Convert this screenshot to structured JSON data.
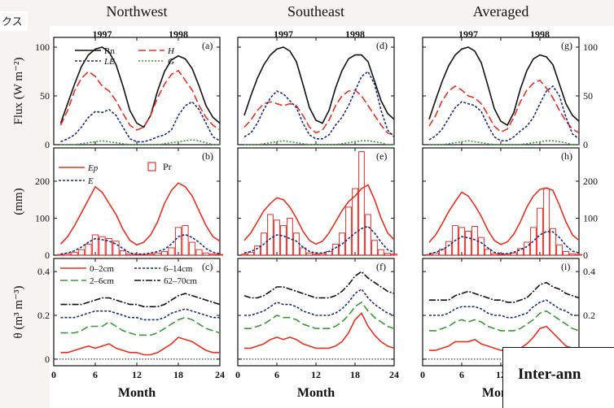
{
  "jp_label": "クス",
  "banner_text": "Inter-ann",
  "colors": {
    "rn": "#111111",
    "h": "#e83020",
    "le": "#1a2a80",
    "g": "#3a9a3a",
    "ep": "#e83020",
    "e": "#1a2a80",
    "pr": "#e8302a",
    "d1": "#e83020",
    "d2": "#3a9a3a",
    "d3": "#1a2a80",
    "d4": "#111111"
  },
  "chart_data": {
    "type": "line",
    "columns": [
      "Northwest",
      "Southeast",
      "Averaged"
    ],
    "years": [
      "1997",
      "1998"
    ],
    "x": [
      1,
      2,
      3,
      4,
      5,
      6,
      7,
      8,
      9,
      10,
      11,
      12,
      13,
      14,
      15,
      16,
      17,
      18,
      19,
      20,
      21,
      22,
      23,
      24
    ],
    "xlim": [
      0,
      24
    ],
    "xticks": [
      "0",
      "6",
      "12",
      "18",
      "24"
    ],
    "xlabel": "Month",
    "rows": [
      {
        "ylabel": "Flux (W m⁻²)",
        "ylim": [
          0,
          110
        ],
        "yticks": [
          "0",
          "50",
          "100"
        ],
        "legend": [
          "Rn",
          "H",
          "LE",
          "G"
        ],
        "panels": [
          {
            "label": "(a)",
            "Rn": [
              22,
              42,
              62,
              80,
              92,
              98,
              100,
              95,
              82,
              60,
              35,
              22,
              18,
              30,
              55,
              75,
              87,
              91,
              88,
              78,
              60,
              40,
              28,
              22
            ],
            "H": [
              20,
              35,
              55,
              68,
              75,
              70,
              60,
              55,
              45,
              32,
              20,
              15,
              18,
              30,
              48,
              62,
              72,
              76,
              66,
              56,
              40,
              28,
              20,
              15
            ],
            "LE": [
              3,
              6,
              10,
              18,
              28,
              34,
              33,
              36,
              30,
              18,
              6,
              3,
              3,
              5,
              8,
              10,
              15,
              30,
              40,
              44,
              36,
              22,
              8,
              4
            ],
            "G": [
              0,
              0,
              0,
              1,
              2,
              3,
              4,
              3,
              2,
              1,
              0,
              0,
              0,
              0,
              0,
              1,
              2,
              3,
              4,
              5,
              4,
              2,
              0,
              0
            ]
          },
          {
            "label": "(d)",
            "Rn": [
              30,
              50,
              68,
              82,
              92,
              98,
              100,
              96,
              85,
              62,
              38,
              25,
              22,
              35,
              58,
              76,
              88,
              92,
              92,
              85,
              65,
              45,
              32,
              26
            ],
            "H": [
              18,
              25,
              35,
              42,
              44,
              42,
              40,
              42,
              40,
              30,
              18,
              12,
              15,
              25,
              40,
              50,
              55,
              56,
              50,
              40,
              30,
              20,
              12,
              10
            ],
            "LE": [
              8,
              12,
              22,
              36,
              48,
              55,
              52,
              45,
              38,
              22,
              10,
              6,
              6,
              10,
              20,
              28,
              40,
              55,
              70,
              75,
              62,
              35,
              15,
              8
            ],
            "G": [
              0,
              0,
              0,
              1,
              2,
              3,
              4,
              3,
              2,
              1,
              0,
              0,
              0,
              0,
              0,
              1,
              2,
              3,
              4,
              4,
              3,
              2,
              0,
              0
            ]
          },
          {
            "label": "(g)",
            "Rn": [
              26,
              46,
              65,
              81,
              92,
              98,
              100,
              96,
              84,
              61,
              37,
              24,
              20,
              33,
              57,
              76,
              88,
              92,
              90,
              82,
              62,
              42,
              30,
              24
            ],
            "H": [
              19,
              30,
              45,
              55,
              60,
              56,
              50,
              48,
              42,
              31,
              19,
              13,
              16,
              28,
              44,
              56,
              63,
              66,
              58,
              48,
              35,
              24,
              16,
              12
            ],
            "LE": [
              5,
              9,
              16,
              27,
              38,
              44,
              42,
              40,
              34,
              20,
              8,
              4,
              4,
              8,
              14,
              19,
              28,
              42,
              55,
              60,
              50,
              28,
              11,
              6
            ],
            "G": [
              0,
              0,
              0,
              1,
              2,
              3,
              4,
              3,
              2,
              1,
              0,
              0,
              0,
              0,
              0,
              1,
              2,
              3,
              4,
              4,
              3,
              2,
              0,
              0
            ]
          }
        ]
      },
      {
        "ylabel": "(mm)",
        "ylim": [
          0,
          290
        ],
        "yticks": [
          "0",
          "100",
          "200"
        ],
        "legend": [
          "Ep",
          "E",
          "Pr"
        ],
        "panels": [
          {
            "label": "(b)",
            "Ep": [
              30,
              50,
              80,
              115,
              150,
              185,
              170,
              140,
              110,
              70,
              40,
              28,
              35,
              55,
              90,
              140,
              175,
              195,
              185,
              160,
              120,
              80,
              50,
              38
            ],
            "E": [
              3,
              6,
              12,
              22,
              35,
              45,
              42,
              38,
              30,
              18,
              6,
              3,
              3,
              6,
              10,
              16,
              30,
              50,
              56,
              48,
              35,
              18,
              8,
              4
            ],
            "Pr": [
              2,
              4,
              8,
              15,
              30,
              55,
              50,
              45,
              38,
              12,
              3,
              2,
              2,
              3,
              6,
              10,
              20,
              75,
              80,
              35,
              15,
              6,
              3,
              2
            ]
          },
          {
            "label": "(e)",
            "Ep": [
              40,
              60,
              90,
              120,
              140,
              155,
              150,
              130,
              100,
              65,
              40,
              30,
              38,
              60,
              90,
              120,
              145,
              160,
              180,
              190,
              150,
              100,
              60,
              42
            ],
            "E": [
              6,
              10,
              18,
              30,
              45,
              55,
              52,
              45,
              38,
              22,
              10,
              6,
              6,
              10,
              20,
              30,
              45,
              60,
              72,
              78,
              60,
              35,
              15,
              8
            ],
            "Pr": [
              3,
              8,
              25,
              60,
              110,
              95,
              80,
              100,
              60,
              20,
              6,
              3,
              4,
              10,
              30,
              60,
              130,
              180,
              280,
              110,
              40,
              15,
              5,
              3
            ]
          },
          {
            "label": "(h)",
            "Ep": [
              35,
              55,
              85,
              118,
              145,
              170,
              160,
              135,
              105,
              68,
              40,
              29,
              36,
              57,
              90,
              130,
              160,
              178,
              182,
              175,
              135,
              90,
              55,
              40
            ],
            "E": [
              4,
              8,
              15,
              26,
              40,
              50,
              47,
              42,
              34,
              20,
              8,
              4,
              4,
              8,
              15,
              23,
              38,
              55,
              64,
              63,
              48,
              26,
              11,
              6
            ],
            "Pr": [
              2,
              6,
              16,
              37,
              80,
              75,
              65,
              78,
              48,
              16,
              4,
              2,
              3,
              6,
              18,
              35,
              75,
              127,
              180,
              72,
              28,
              10,
              4,
              2
            ]
          }
        ]
      },
      {
        "ylabel": "θ (m³ m⁻³)",
        "ylim": [
          -0.03,
          0.46
        ],
        "yticks": [
          "0",
          "0.2",
          "0.4"
        ],
        "legend": [
          "0–2cm",
          "2–6cm",
          "6–14cm",
          "62–70cm"
        ],
        "panels": [
          {
            "label": "(c)",
            "d1": [
              0.03,
              0.03,
              0.04,
              0.05,
              0.06,
              0.05,
              0.06,
              0.07,
              0.05,
              0.04,
              0.03,
              0.03,
              0.02,
              0.02,
              0.03,
              0.05,
              0.07,
              0.1,
              0.09,
              0.08,
              0.06,
              0.04,
              0.03,
              0.03
            ],
            "d2": [
              0.12,
              0.12,
              0.12,
              0.13,
              0.15,
              0.15,
              0.15,
              0.17,
              0.15,
              0.13,
              0.12,
              0.11,
              0.11,
              0.11,
              0.12,
              0.14,
              0.16,
              0.18,
              0.19,
              0.18,
              0.16,
              0.14,
              0.13,
              0.12
            ],
            "d3": [
              0.19,
              0.19,
              0.19,
              0.2,
              0.21,
              0.22,
              0.22,
              0.22,
              0.21,
              0.2,
              0.19,
              0.19,
              0.18,
              0.18,
              0.18,
              0.19,
              0.21,
              0.22,
              0.23,
              0.22,
              0.21,
              0.2,
              0.19,
              0.19
            ],
            "d4": [
              0.25,
              0.25,
              0.25,
              0.25,
              0.26,
              0.27,
              0.28,
              0.28,
              0.27,
              0.26,
              0.25,
              0.25,
              0.24,
              0.24,
              0.24,
              0.25,
              0.27,
              0.29,
              0.3,
              0.29,
              0.28,
              0.27,
              0.26,
              0.25
            ]
          },
          {
            "label": "(f)",
            "d1": [
              0.05,
              0.05,
              0.06,
              0.07,
              0.09,
              0.1,
              0.09,
              0.1,
              0.09,
              0.07,
              0.06,
              0.05,
              0.05,
              0.05,
              0.06,
              0.08,
              0.12,
              0.18,
              0.21,
              0.15,
              0.11,
              0.08,
              0.06,
              0.05
            ],
            "d2": [
              0.14,
              0.14,
              0.15,
              0.16,
              0.18,
              0.2,
              0.19,
              0.19,
              0.18,
              0.16,
              0.15,
              0.14,
              0.14,
              0.14,
              0.15,
              0.17,
              0.2,
              0.24,
              0.26,
              0.22,
              0.19,
              0.17,
              0.15,
              0.14
            ],
            "d3": [
              0.2,
              0.2,
              0.21,
              0.22,
              0.24,
              0.26,
              0.25,
              0.25,
              0.24,
              0.22,
              0.21,
              0.2,
              0.2,
              0.2,
              0.21,
              0.23,
              0.26,
              0.3,
              0.32,
              0.28,
              0.25,
              0.23,
              0.21,
              0.2
            ],
            "d4": [
              0.29,
              0.28,
              0.28,
              0.29,
              0.31,
              0.33,
              0.33,
              0.32,
              0.31,
              0.3,
              0.29,
              0.28,
              0.28,
              0.28,
              0.29,
              0.31,
              0.34,
              0.38,
              0.4,
              0.37,
              0.35,
              0.33,
              0.31,
              0.3
            ]
          },
          {
            "label": "(i)",
            "d1": [
              0.04,
              0.04,
              0.05,
              0.06,
              0.08,
              0.08,
              0.08,
              0.09,
              0.07,
              0.06,
              0.05,
              0.04,
              0.04,
              0.04,
              0.05,
              0.07,
              0.1,
              0.14,
              0.15,
              0.12,
              0.09,
              0.06,
              0.05,
              0.04
            ],
            "d2": [
              0.13,
              0.13,
              0.14,
              0.15,
              0.17,
              0.18,
              0.17,
              0.18,
              0.17,
              0.15,
              0.14,
              0.13,
              0.13,
              0.13,
              0.14,
              0.16,
              0.18,
              0.21,
              0.22,
              0.2,
              0.18,
              0.16,
              0.14,
              0.13
            ],
            "d3": [
              0.2,
              0.2,
              0.2,
              0.21,
              0.23,
              0.24,
              0.24,
              0.24,
              0.23,
              0.21,
              0.2,
              0.2,
              0.19,
              0.19,
              0.2,
              0.21,
              0.24,
              0.26,
              0.27,
              0.25,
              0.23,
              0.22,
              0.2,
              0.2
            ],
            "d4": [
              0.27,
              0.27,
              0.27,
              0.27,
              0.29,
              0.3,
              0.31,
              0.3,
              0.29,
              0.28,
              0.27,
              0.27,
              0.26,
              0.26,
              0.27,
              0.28,
              0.31,
              0.34,
              0.35,
              0.33,
              0.32,
              0.3,
              0.29,
              0.28
            ]
          }
        ]
      }
    ]
  }
}
